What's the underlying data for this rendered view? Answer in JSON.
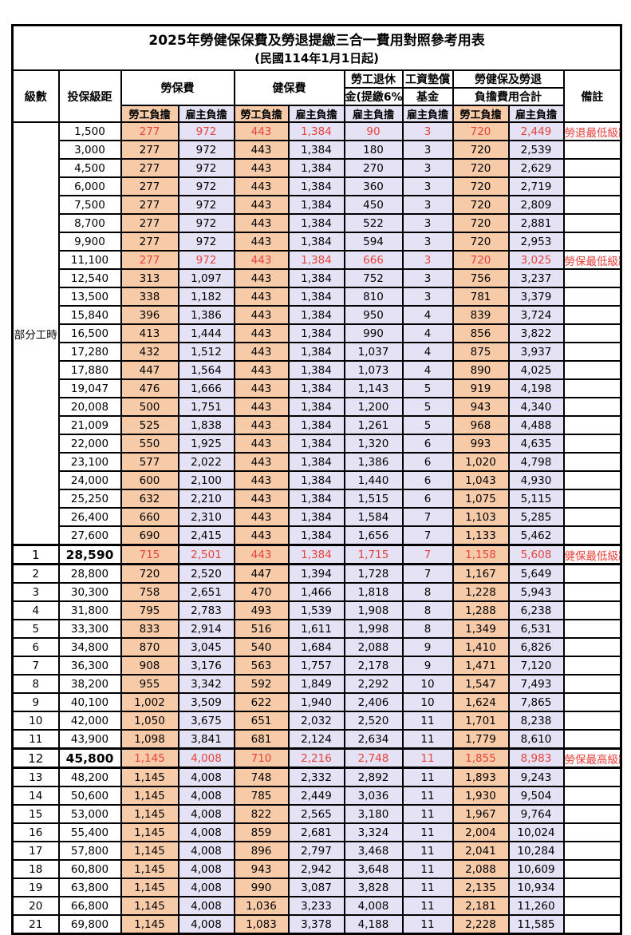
{
  "title": {
    "line1": "2025年勞健保保費及勞退提繳三合一費用對照參考用表",
    "line2": "(民國114年1月1日起)"
  },
  "colors": {
    "employee_column_bg": "#F8CBA8",
    "employer_column_bg": "#E4E2F4",
    "highlight_red": "#E8423B",
    "grid_black": "#000000"
  },
  "header": {
    "level": "級數",
    "bracket": "投保級距",
    "labor_insurance": "勞保費",
    "health_insurance": "健保費",
    "pension_line1": "勞工退休",
    "pension_line2": "金(提繳6%)",
    "wage_fund_line1": "工資墊償",
    "wage_fund_line2": "基金",
    "total_line1": "勞健保及勞退",
    "total_line2": "負擔費用合計",
    "note": "備註",
    "sub_headers": [
      "勞工負擔",
      "雇主負擔",
      "勞工負擔",
      "雇主負擔",
      "雇主負擔",
      "雇主負擔",
      "勞工負擔",
      "雇主負擔"
    ]
  },
  "table": {
    "part_time": {
      "label": "部分工時",
      "rowspan": 23
    },
    "rows": [
      {
        "level": "",
        "bracket": "1,500",
        "values": [
          "277",
          "972",
          "443",
          "1,384",
          "90",
          "3",
          "720",
          "2,449"
        ],
        "note": "勞退最低級距",
        "emph": false
      },
      {
        "level": "",
        "bracket": "3,000",
        "values": [
          "277",
          "972",
          "443",
          "1,384",
          "180",
          "3",
          "720",
          "2,539"
        ],
        "note": "",
        "emph": false
      },
      {
        "level": "",
        "bracket": "4,500",
        "values": [
          "277",
          "972",
          "443",
          "1,384",
          "270",
          "3",
          "720",
          "2,629"
        ],
        "note": "",
        "emph": false
      },
      {
        "level": "",
        "bracket": "6,000",
        "values": [
          "277",
          "972",
          "443",
          "1,384",
          "360",
          "3",
          "720",
          "2,719"
        ],
        "note": "",
        "emph": false
      },
      {
        "level": "",
        "bracket": "7,500",
        "values": [
          "277",
          "972",
          "443",
          "1,384",
          "450",
          "3",
          "720",
          "2,809"
        ],
        "note": "",
        "emph": false
      },
      {
        "level": "",
        "bracket": "8,700",
        "values": [
          "277",
          "972",
          "443",
          "1,384",
          "522",
          "3",
          "720",
          "2,881"
        ],
        "note": "",
        "emph": false
      },
      {
        "level": "",
        "bracket": "9,900",
        "values": [
          "277",
          "972",
          "443",
          "1,384",
          "594",
          "3",
          "720",
          "2,953"
        ],
        "note": "",
        "emph": false
      },
      {
        "level": "",
        "bracket": "11,100",
        "values": [
          "277",
          "972",
          "443",
          "1,384",
          "666",
          "3",
          "720",
          "3,025"
        ],
        "note": "勞保最低級距",
        "emph": false
      },
      {
        "level": "",
        "bracket": "12,540",
        "values": [
          "313",
          "1,097",
          "443",
          "1,384",
          "752",
          "3",
          "756",
          "3,237"
        ],
        "note": "",
        "emph": false
      },
      {
        "level": "",
        "bracket": "13,500",
        "values": [
          "338",
          "1,182",
          "443",
          "1,384",
          "810",
          "3",
          "781",
          "3,379"
        ],
        "note": "",
        "emph": false
      },
      {
        "level": "",
        "bracket": "15,840",
        "values": [
          "396",
          "1,386",
          "443",
          "1,384",
          "950",
          "4",
          "839",
          "3,724"
        ],
        "note": "",
        "emph": false
      },
      {
        "level": "",
        "bracket": "16,500",
        "values": [
          "413",
          "1,444",
          "443",
          "1,384",
          "990",
          "4",
          "856",
          "3,822"
        ],
        "note": "",
        "emph": false
      },
      {
        "level": "",
        "bracket": "17,280",
        "values": [
          "432",
          "1,512",
          "443",
          "1,384",
          "1,037",
          "4",
          "875",
          "3,937"
        ],
        "note": "",
        "emph": false
      },
      {
        "level": "",
        "bracket": "17,880",
        "values": [
          "447",
          "1,564",
          "443",
          "1,384",
          "1,073",
          "4",
          "890",
          "4,025"
        ],
        "note": "",
        "emph": false
      },
      {
        "level": "",
        "bracket": "19,047",
        "values": [
          "476",
          "1,666",
          "443",
          "1,384",
          "1,143",
          "5",
          "919",
          "4,198"
        ],
        "note": "",
        "emph": false
      },
      {
        "level": "",
        "bracket": "20,008",
        "values": [
          "500",
          "1,751",
          "443",
          "1,384",
          "1,200",
          "5",
          "943",
          "4,340"
        ],
        "note": "",
        "emph": false
      },
      {
        "level": "",
        "bracket": "21,009",
        "values": [
          "525",
          "1,838",
          "443",
          "1,384",
          "1,261",
          "5",
          "968",
          "4,488"
        ],
        "note": "",
        "emph": false
      },
      {
        "level": "",
        "bracket": "22,000",
        "values": [
          "550",
          "1,925",
          "443",
          "1,384",
          "1,320",
          "6",
          "993",
          "4,635"
        ],
        "note": "",
        "emph": false
      },
      {
        "level": "",
        "bracket": "23,100",
        "values": [
          "577",
          "2,022",
          "443",
          "1,384",
          "1,386",
          "6",
          "1,020",
          "4,798"
        ],
        "note": "",
        "emph": false
      },
      {
        "level": "",
        "bracket": "24,000",
        "values": [
          "600",
          "2,100",
          "443",
          "1,384",
          "1,440",
          "6",
          "1,043",
          "4,930"
        ],
        "note": "",
        "emph": false
      },
      {
        "level": "",
        "bracket": "25,250",
        "values": [
          "632",
          "2,210",
          "443",
          "1,384",
          "1,515",
          "6",
          "1,075",
          "5,115"
        ],
        "note": "",
        "emph": false
      },
      {
        "level": "",
        "bracket": "26,400",
        "values": [
          "660",
          "2,310",
          "443",
          "1,384",
          "1,584",
          "7",
          "1,103",
          "5,285"
        ],
        "note": "",
        "emph": false
      },
      {
        "level": "",
        "bracket": "27,600",
        "values": [
          "690",
          "2,415",
          "443",
          "1,384",
          "1,656",
          "7",
          "1,133",
          "5,462"
        ],
        "note": "",
        "emph": false
      },
      {
        "level": "1",
        "bracket": "28,590",
        "values": [
          "715",
          "2,501",
          "443",
          "1,384",
          "1,715",
          "7",
          "1,158",
          "5,608"
        ],
        "note": "健保最低級距",
        "emph": true
      },
      {
        "level": "2",
        "bracket": "28,800",
        "values": [
          "720",
          "2,520",
          "447",
          "1,394",
          "1,728",
          "7",
          "1,167",
          "5,649"
        ],
        "note": "",
        "emph": false
      },
      {
        "level": "3",
        "bracket": "30,300",
        "values": [
          "758",
          "2,651",
          "470",
          "1,466",
          "1,818",
          "8",
          "1,228",
          "5,943"
        ],
        "note": "",
        "emph": false
      },
      {
        "level": "4",
        "bracket": "31,800",
        "values": [
          "795",
          "2,783",
          "493",
          "1,539",
          "1,908",
          "8",
          "1,288",
          "6,238"
        ],
        "note": "",
        "emph": false
      },
      {
        "level": "5",
        "bracket": "33,300",
        "values": [
          "833",
          "2,914",
          "516",
          "1,611",
          "1,998",
          "8",
          "1,349",
          "6,531"
        ],
        "note": "",
        "emph": false
      },
      {
        "level": "6",
        "bracket": "34,800",
        "values": [
          "870",
          "3,045",
          "540",
          "1,684",
          "2,088",
          "9",
          "1,410",
          "6,826"
        ],
        "note": "",
        "emph": false
      },
      {
        "level": "7",
        "bracket": "36,300",
        "values": [
          "908",
          "3,176",
          "563",
          "1,757",
          "2,178",
          "9",
          "1,471",
          "7,120"
        ],
        "note": "",
        "emph": false
      },
      {
        "level": "8",
        "bracket": "38,200",
        "values": [
          "955",
          "3,342",
          "592",
          "1,849",
          "2,292",
          "10",
          "1,547",
          "7,493"
        ],
        "note": "",
        "emph": false
      },
      {
        "level": "9",
        "bracket": "40,100",
        "values": [
          "1,002",
          "3,509",
          "622",
          "1,940",
          "2,406",
          "10",
          "1,624",
          "7,865"
        ],
        "note": "",
        "emph": false
      },
      {
        "level": "10",
        "bracket": "42,000",
        "values": [
          "1,050",
          "3,675",
          "651",
          "2,032",
          "2,520",
          "11",
          "1,701",
          "8,238"
        ],
        "note": "",
        "emph": false
      },
      {
        "level": "11",
        "bracket": "43,900",
        "values": [
          "1,098",
          "3,841",
          "681",
          "2,124",
          "2,634",
          "11",
          "1,779",
          "8,610"
        ],
        "note": "",
        "emph": false
      },
      {
        "level": "12",
        "bracket": "45,800",
        "values": [
          "1,145",
          "4,008",
          "710",
          "2,216",
          "2,748",
          "11",
          "1,855",
          "8,983"
        ],
        "note": "勞保最高級距",
        "emph": true
      },
      {
        "level": "13",
        "bracket": "48,200",
        "values": [
          "1,145",
          "4,008",
          "748",
          "2,332",
          "2,892",
          "11",
          "1,893",
          "9,243"
        ],
        "note": "",
        "emph": false
      },
      {
        "level": "14",
        "bracket": "50,600",
        "values": [
          "1,145",
          "4,008",
          "785",
          "2,449",
          "3,036",
          "11",
          "1,930",
          "9,504"
        ],
        "note": "",
        "emph": false
      },
      {
        "level": "15",
        "bracket": "53,000",
        "values": [
          "1,145",
          "4,008",
          "822",
          "2,565",
          "3,180",
          "11",
          "1,967",
          "9,764"
        ],
        "note": "",
        "emph": false
      },
      {
        "level": "16",
        "bracket": "55,400",
        "values": [
          "1,145",
          "4,008",
          "859",
          "2,681",
          "3,324",
          "11",
          "2,004",
          "10,024"
        ],
        "note": "",
        "emph": false
      },
      {
        "level": "17",
        "bracket": "57,800",
        "values": [
          "1,145",
          "4,008",
          "896",
          "2,797",
          "3,468",
          "11",
          "2,041",
          "10,284"
        ],
        "note": "",
        "emph": false
      },
      {
        "level": "18",
        "bracket": "60,800",
        "values": [
          "1,145",
          "4,008",
          "943",
          "2,942",
          "3,648",
          "11",
          "2,088",
          "10,609"
        ],
        "note": "",
        "emph": false
      },
      {
        "level": "19",
        "bracket": "63,800",
        "values": [
          "1,145",
          "4,008",
          "990",
          "3,087",
          "3,828",
          "11",
          "2,135",
          "10,934"
        ],
        "note": "",
        "emph": false
      },
      {
        "level": "20",
        "bracket": "66,800",
        "values": [
          "1,145",
          "4,008",
          "1,036",
          "3,233",
          "4,008",
          "11",
          "2,181",
          "11,260"
        ],
        "note": "",
        "emph": false
      },
      {
        "level": "21",
        "bracket": "69,800",
        "values": [
          "1,145",
          "4,008",
          "1,083",
          "3,378",
          "4,188",
          "11",
          "2,228",
          "11,585"
        ],
        "note": "",
        "emph": false
      }
    ]
  }
}
